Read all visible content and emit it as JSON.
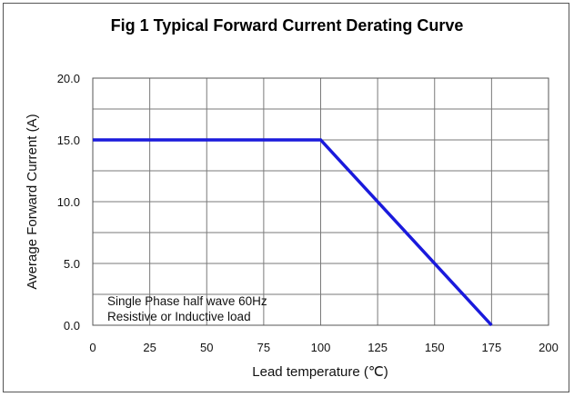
{
  "chart_data": {
    "type": "line",
    "title": "Fig 1 Typical Forward Current Derating Curve",
    "xlabel": "Lead temperature (℃)",
    "ylabel": "Average Forward Current (A)",
    "xlim": [
      0,
      200
    ],
    "ylim": [
      0,
      20
    ],
    "x_ticks": [
      "0",
      "25",
      "50",
      "75",
      "100",
      "125",
      "150",
      "175",
      "200"
    ],
    "y_ticks": [
      "0.0",
      "5.0",
      "10.0",
      "15.0",
      "20.0"
    ],
    "grid": true,
    "series": [
      {
        "x": [
          0,
          100,
          175
        ],
        "y": [
          15,
          15,
          0
        ],
        "color": "#1a1adc"
      }
    ],
    "annotations": [
      "Single Phase half wave 60Hz",
      "Resistive or Inductive load"
    ]
  }
}
